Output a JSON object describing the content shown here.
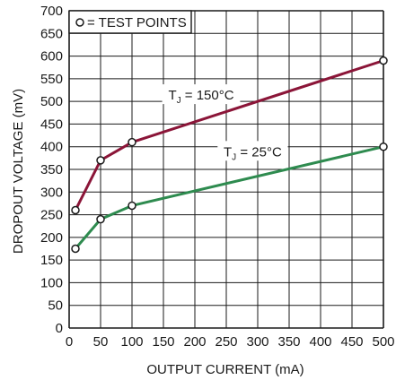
{
  "chart_data": {
    "type": "line",
    "xlabel": "OUTPUT CURRENT (mA)",
    "ylabel": "DROPOUT VOLTAGE (mV)",
    "xlim": [
      0,
      500
    ],
    "ylim": [
      0,
      700
    ],
    "x_ticks": [
      0,
      50,
      100,
      150,
      200,
      250,
      300,
      350,
      400,
      450,
      500
    ],
    "y_ticks": [
      0,
      50,
      100,
      150,
      200,
      250,
      300,
      350,
      400,
      450,
      500,
      550,
      600,
      650,
      700
    ],
    "grid": true,
    "legend": {
      "marker": "open-circle",
      "text": "= TEST POINTS",
      "placement": "top-left"
    },
    "series": [
      {
        "name": "TJ = 150°C",
        "color": "#8b1538",
        "points": [
          [
            10,
            260
          ],
          [
            50,
            370
          ],
          [
            100,
            410
          ],
          [
            500,
            590
          ]
        ],
        "test_points": [
          [
            10,
            260
          ],
          [
            50,
            370
          ],
          [
            100,
            410
          ],
          [
            500,
            590
          ]
        ]
      },
      {
        "name": "TJ = 25°C",
        "color": "#2e8b4f",
        "points": [
          [
            10,
            175
          ],
          [
            50,
            240
          ],
          [
            100,
            270
          ],
          [
            500,
            400
          ]
        ],
        "test_points": [
          [
            10,
            175
          ],
          [
            50,
            240
          ],
          [
            100,
            270
          ],
          [
            500,
            400
          ]
        ]
      }
    ],
    "annotations": [
      {
        "series": 0,
        "main": "T",
        "sub": "J",
        "rest": " = 150°C",
        "x": 210,
        "y": 510
      },
      {
        "series": 1,
        "main": "T",
        "sub": "J",
        "rest": " = 25°C",
        "x": 292,
        "y": 385
      }
    ]
  }
}
